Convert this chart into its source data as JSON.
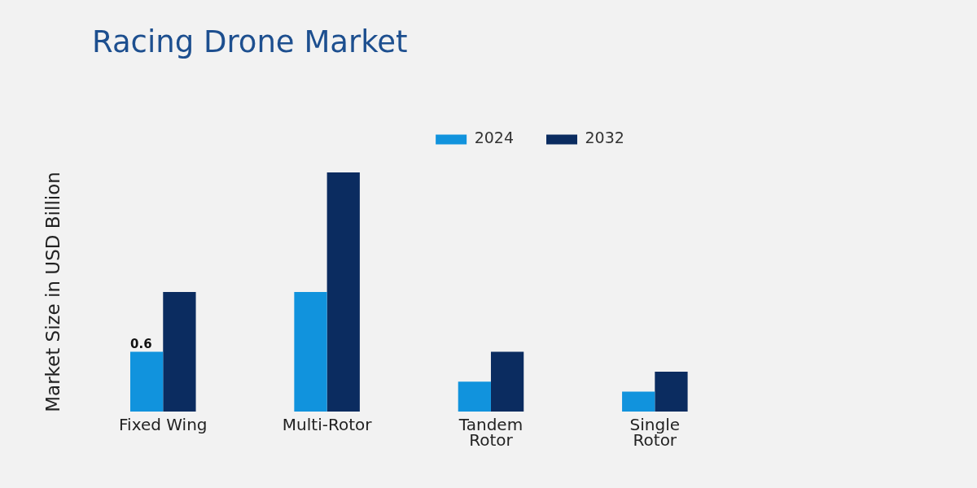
{
  "chart_data": {
    "type": "bar",
    "title": "Racing Drone Market",
    "ylabel": "Market Size in USD Billion",
    "categories": [
      "Fixed Wing",
      "Multi-Rotor",
      "Tandem Rotor",
      "Single Rotor"
    ],
    "series": [
      {
        "name": "2024",
        "color": "#1193dd",
        "values": [
          0.6,
          1.2,
          0.3,
          0.2
        ],
        "value_labels": [
          "0.6",
          null,
          null,
          null
        ]
      },
      {
        "name": "2032",
        "color": "#0b2c60",
        "values": [
          1.2,
          2.4,
          0.6,
          0.4
        ]
      }
    ],
    "tick_labels": "x",
    "legend": "top"
  }
}
